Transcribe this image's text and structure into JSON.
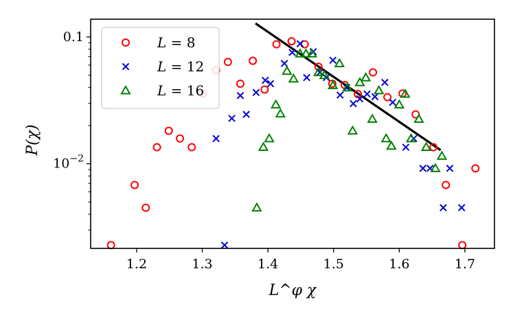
{
  "chart_data": {
    "type": "scatter",
    "title": "",
    "xlabel": "L^φ χ",
    "ylabel": "P(χ)",
    "xscale": "linear",
    "yscale": "log",
    "xlim": [
      1.13,
      1.745
    ],
    "ylim": [
      0.00215,
      0.138
    ],
    "grid": false,
    "legend_position": "top-left",
    "x_ticks": [
      {
        "value": 1.2,
        "label": "1.2"
      },
      {
        "value": 1.3,
        "label": "1.3"
      },
      {
        "value": 1.4,
        "label": "1.4"
      },
      {
        "value": 1.5,
        "label": "1.5"
      },
      {
        "value": 1.6,
        "label": "1.6"
      },
      {
        "value": 1.7,
        "label": "1.7"
      }
    ],
    "y_ticks": [
      {
        "value": 0.01,
        "base": "10",
        "exp": "−2"
      },
      {
        "value": 0.1,
        "label": "0.1"
      }
    ],
    "series": [
      {
        "name": "L = 8",
        "legend_var": "L",
        "legend_val": "= 8",
        "marker": "circle",
        "color": "#ff0000",
        "points": [
          [
            1.161,
            0.00228
          ],
          [
            1.197,
            0.0068
          ],
          [
            1.214,
            0.0045
          ],
          [
            1.231,
            0.0135
          ],
          [
            1.249,
            0.0182
          ],
          [
            1.266,
            0.0158
          ],
          [
            1.284,
            0.0135
          ],
          [
            1.301,
            0.0358
          ],
          [
            1.321,
            0.0545
          ],
          [
            1.339,
            0.0635
          ],
          [
            1.358,
            0.0428
          ],
          [
            1.377,
            0.0648
          ],
          [
            1.395,
            0.0385
          ],
          [
            1.413,
            0.0875
          ],
          [
            1.436,
            0.0925
          ],
          [
            1.456,
            0.0875
          ],
          [
            1.477,
            0.0582
          ],
          [
            1.498,
            0.0428
          ],
          [
            1.517,
            0.0418
          ],
          [
            1.537,
            0.0355
          ],
          [
            1.56,
            0.0525
          ],
          [
            1.582,
            0.0335
          ],
          [
            1.605,
            0.0358
          ],
          [
            1.625,
            0.0245
          ],
          [
            1.652,
            0.0135
          ],
          [
            1.671,
            0.0068
          ],
          [
            1.696,
            0.00228
          ],
          [
            1.716,
            0.0092
          ]
        ]
      },
      {
        "name": "L = 12",
        "legend_var": "L",
        "legend_val": "= 12",
        "marker": "x",
        "color": "#0000cc",
        "points": [
          [
            1.321,
            0.0158
          ],
          [
            1.334,
            0.00228
          ],
          [
            1.345,
            0.0228
          ],
          [
            1.358,
            0.0345
          ],
          [
            1.367,
            0.0245
          ],
          [
            1.382,
            0.0365
          ],
          [
            1.396,
            0.0455
          ],
          [
            1.404,
            0.0428
          ],
          [
            1.425,
            0.0618
          ],
          [
            1.437,
            0.0755
          ],
          [
            1.449,
            0.0885
          ],
          [
            1.459,
            0.0478
          ],
          [
            1.469,
            0.0765
          ],
          [
            1.479,
            0.0525
          ],
          [
            1.489,
            0.0478
          ],
          [
            1.499,
            0.0655
          ],
          [
            1.51,
            0.0348
          ],
          [
            1.52,
            0.0398
          ],
          [
            1.53,
            0.0298
          ],
          [
            1.54,
            0.0325
          ],
          [
            1.551,
            0.0355
          ],
          [
            1.563,
            0.0338
          ],
          [
            1.578,
            0.0438
          ],
          [
            1.59,
            0.0305
          ],
          [
            1.61,
            0.0135
          ],
          [
            1.622,
            0.0158
          ],
          [
            1.636,
            0.0092
          ],
          [
            1.647,
            0.0092
          ],
          [
            1.667,
            0.0045
          ],
          [
            1.677,
            0.0092
          ],
          [
            1.695,
            0.0045
          ]
        ]
      },
      {
        "name": "L = 16",
        "legend_var": "L",
        "legend_val": "= 16",
        "marker": "triangle",
        "color": "#008000",
        "points": [
          [
            1.383,
            0.0045
          ],
          [
            1.393,
            0.0135
          ],
          [
            1.402,
            0.0158
          ],
          [
            1.412,
            0.0292
          ],
          [
            1.419,
            0.0248
          ],
          [
            1.429,
            0.0538
          ],
          [
            1.439,
            0.0468
          ],
          [
            1.449,
            0.0738
          ],
          [
            1.458,
            0.0738
          ],
          [
            1.467,
            0.0738
          ],
          [
            1.477,
            0.0525
          ],
          [
            1.486,
            0.0498
          ],
          [
            1.499,
            0.0415
          ],
          [
            1.509,
            0.0618
          ],
          [
            1.521,
            0.0398
          ],
          [
            1.529,
            0.0182
          ],
          [
            1.54,
            0.0438
          ],
          [
            1.549,
            0.0478
          ],
          [
            1.559,
            0.0225
          ],
          [
            1.569,
            0.0378
          ],
          [
            1.58,
            0.0158
          ],
          [
            1.588,
            0.0138
          ],
          [
            1.6,
            0.0292
          ],
          [
            1.609,
            0.0355
          ],
          [
            1.618,
            0.0158
          ],
          [
            1.63,
            0.0225
          ],
          [
            1.641,
            0.0135
          ],
          [
            1.655,
            0.0092
          ],
          [
            1.665,
            0.0115
          ]
        ]
      }
    ],
    "fit_line": {
      "color": "#000000",
      "points": [
        [
          1.381,
          0.128
        ],
        [
          1.663,
          0.0128
        ]
      ]
    }
  }
}
